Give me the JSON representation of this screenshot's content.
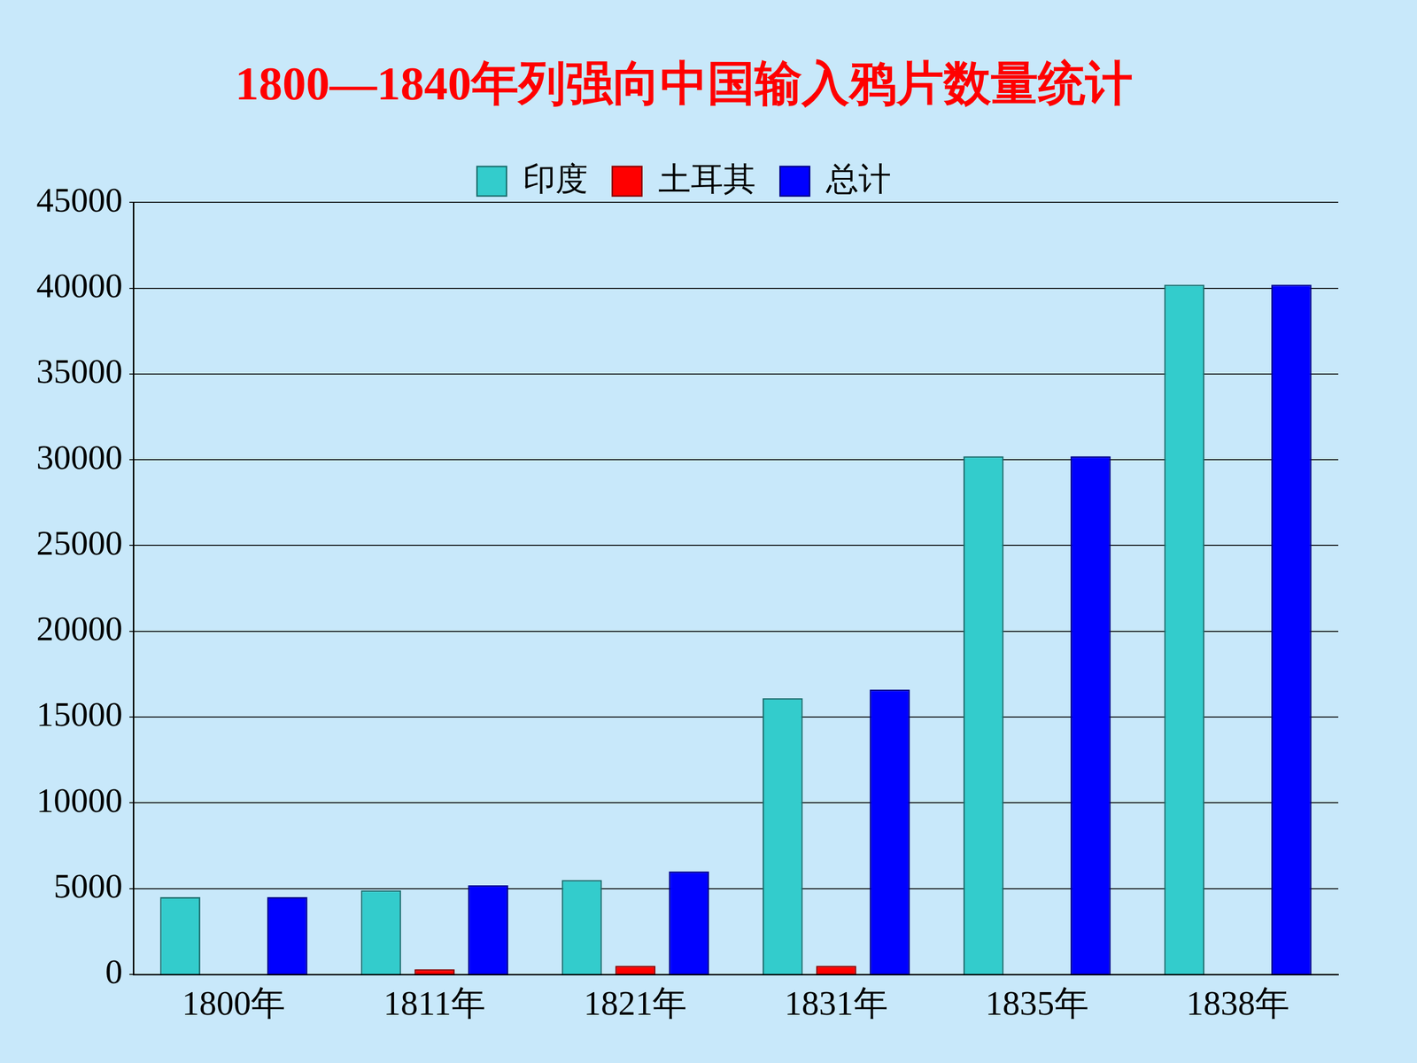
{
  "chart_data": {
    "type": "bar",
    "title": "1800—1840年列强向中国输入鸦片数量统计",
    "categories": [
      "1800年",
      "1811年",
      "1821年",
      "1831年",
      "1835年",
      "1838年"
    ],
    "series": [
      {
        "name": "印度",
        "color": "#33cccc",
        "values": [
          4500,
          4900,
          5500,
          16100,
          30200,
          40200
        ]
      },
      {
        "name": "土耳其",
        "color": "#ff0000",
        "values": [
          0,
          300,
          500,
          500,
          0,
          0
        ]
      },
      {
        "name": "总计",
        "color": "#0000ff",
        "values": [
          4500,
          5200,
          6000,
          16600,
          30200,
          40200
        ]
      }
    ],
    "ylim": [
      0,
      45000
    ],
    "yticks": [
      0,
      5000,
      10000,
      15000,
      20000,
      25000,
      30000,
      35000,
      40000,
      45000
    ],
    "grid": true,
    "legend": "top"
  }
}
